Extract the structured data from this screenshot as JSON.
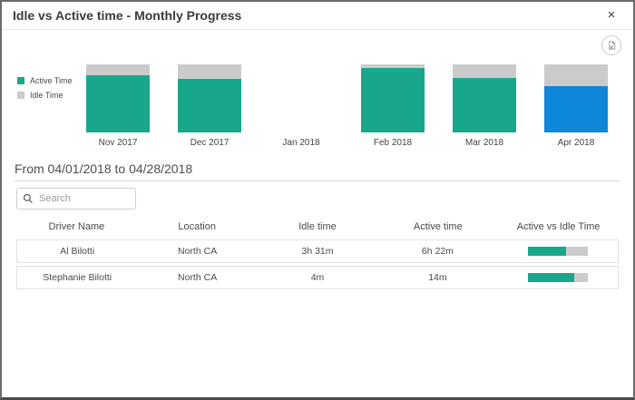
{
  "modal": {
    "title": "Idle vs Active time - Monthly Progress",
    "close_label": "×"
  },
  "icons": {
    "export": "export-chart-icon",
    "search": "search-icon",
    "close": "close-icon"
  },
  "colors": {
    "active_teal": "#18A78B",
    "idle_gray": "#CBCBCB",
    "selected_blue": "#0E87D8",
    "idle_text_orange": "#E87A50",
    "active_text_teal": "#35917E"
  },
  "chart_data": {
    "type": "bar",
    "subtype": "stacked-percent",
    "categories": [
      "Nov 2017",
      "Dec 2017",
      "Jan 2018",
      "Feb 2018",
      "Mar 2018",
      "Apr 2018"
    ],
    "series": [
      {
        "name": "Active Time",
        "color": "#18A78B",
        "values": [
          84,
          79,
          0,
          95,
          80,
          68
        ]
      },
      {
        "name": "Idle Time",
        "color": "#CBCBCB",
        "values": [
          16,
          21,
          0,
          5,
          20,
          32
        ]
      }
    ],
    "selected_category": "Apr 2018",
    "selected_active_color": "#0E87D8",
    "legend_position": "left",
    "ylim": [
      0,
      100
    ],
    "grid": false
  },
  "legend": [
    {
      "label": "Active Time",
      "color": "#18A78B"
    },
    {
      "label": "Idle Time",
      "color": "#CBCBCB"
    }
  ],
  "period_title": "From 04/01/2018 to 04/28/2018",
  "search": {
    "placeholder": "Search",
    "value": ""
  },
  "table": {
    "headers": [
      "Driver Name",
      "Location",
      "Idle time",
      "Active time",
      "Active vs Idle Time"
    ],
    "rows": [
      {
        "driver": "Al Bilotti",
        "location": "North CA",
        "idle": "3h 31m",
        "active": "6h 22m",
        "active_pct": 64
      },
      {
        "driver": "Stephanie Bilotti",
        "location": "North CA",
        "idle": "4m",
        "active": "14m",
        "active_pct": 78
      }
    ]
  }
}
